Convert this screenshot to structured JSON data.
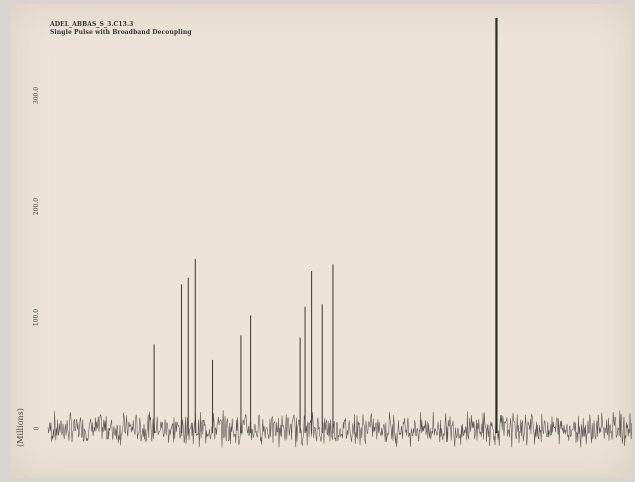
{
  "header": {
    "sample_name": "ADEL_ABBAS_S_3.C13.3",
    "experiment": "Single Pulse with Broadband Decoupling"
  },
  "chart_data": {
    "type": "line",
    "title": "ADEL_ABBAS_S_3.C13.3",
    "subtitle": "Single Pulse with Broadband Decoupling",
    "ylabel": "(Millions)",
    "y_ticks": [
      "0",
      "100.0",
      "200.0",
      "300.0"
    ],
    "y_tick_values": [
      0,
      100,
      200,
      300
    ],
    "ylim": [
      -30,
      370
    ],
    "x_reversed": true,
    "xlim": [
      212,
      -12
    ],
    "noise_amplitude": 12,
    "series": [
      {
        "peaks": [
          {
            "ppm": 171.3,
            "height": 76
          },
          {
            "ppm": 160.8,
            "height": 130
          },
          {
            "ppm": 158.2,
            "height": 136
          },
          {
            "ppm": 155.5,
            "height": 153
          },
          {
            "ppm": 148.9,
            "height": 62
          },
          {
            "ppm": 138.0,
            "height": 84
          },
          {
            "ppm": 134.3,
            "height": 102
          },
          {
            "ppm": 115.3,
            "height": 82
          },
          {
            "ppm": 113.4,
            "height": 110
          },
          {
            "ppm": 110.9,
            "height": 142
          },
          {
            "ppm": 106.8,
            "height": 112
          },
          {
            "ppm": 102.7,
            "height": 148
          },
          {
            "ppm": 40.0,
            "height": 370
          }
        ]
      }
    ]
  },
  "colors": {
    "paper": "#ede3d8",
    "trace": "#3a3632",
    "peak": "#4a4540",
    "solvent": "#2e2a26"
  }
}
